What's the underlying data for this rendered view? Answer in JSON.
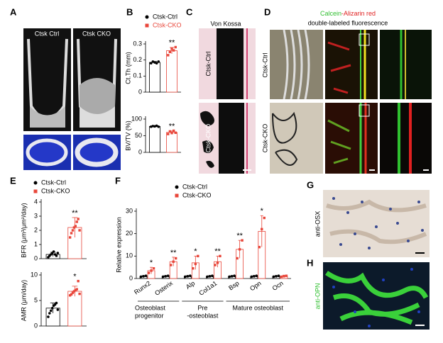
{
  "figure": {
    "panels": [
      "A",
      "B",
      "C",
      "D",
      "E",
      "F",
      "G",
      "H"
    ],
    "a_labels": [
      "Ctsk Ctrl",
      "Ctsk CKO"
    ],
    "c_title": "Von Kossa",
    "c_rows": [
      "Ctsk-Ctrl",
      "Ctsk-CKO"
    ],
    "d_title": [
      "Calcein",
      "-Alizarin red",
      "double-labeled fluorescence"
    ],
    "d_rows": [
      "Ctsk-Ctrl",
      "Ctsk-CKO"
    ],
    "g_label": "anti-OSX",
    "h_label": "anti-OPN"
  },
  "chart_data": [
    {
      "type": "bar",
      "ylabel": "Ct.Th (mm)",
      "ylim": [
        0,
        0.3
      ],
      "yticks": [
        0,
        0.1,
        0.2,
        0.3
      ],
      "series": [
        {
          "name": "Ctsk-Ctrl",
          "color": "#000000",
          "values": [
            0.185
          ],
          "errors": [
            0.006
          ],
          "points": [
            [
              0.18,
              0.19,
              0.185,
              0.18,
              0.19
            ]
          ]
        },
        {
          "name": "Ctsk-CKO",
          "color": "#e8463a",
          "values": [
            0.258
          ],
          "errors": [
            0.02
          ],
          "points": [
            [
              0.23,
              0.25,
              0.27,
              0.26,
              0.28
            ]
          ]
        }
      ],
      "annotations": [
        "**"
      ]
    },
    {
      "type": "bar",
      "ylabel": "BV/TV (%)",
      "ylim": [
        0,
        100
      ],
      "yticks": [
        0,
        50,
        100
      ],
      "series": [
        {
          "color": "#000000",
          "values": [
            78
          ],
          "errors": [
            1.5
          ],
          "points": [
            [
              77,
              79,
              78,
              80,
              77
            ]
          ]
        },
        {
          "color": "#e8463a",
          "values": [
            60
          ],
          "errors": [
            4
          ],
          "points": [
            [
              55,
              63,
              58,
              65,
              59
            ]
          ]
        }
      ],
      "annotations": [
        "**"
      ]
    },
    {
      "type": "bar",
      "ylabel": "BFR (μm³/μm²/day)",
      "ylim": [
        0,
        4
      ],
      "yticks": [
        0,
        1,
        2,
        3,
        4
      ],
      "series": [
        {
          "name": "Ctsk-Ctrl",
          "color": "#000000",
          "values": [
            0.3
          ],
          "errors": [
            0.15
          ],
          "points": [
            [
              0.1,
              0.2,
              0.3,
              0.4,
              0.5,
              0.3,
              0.2,
              0.4
            ]
          ]
        },
        {
          "name": "Ctsk-CKO",
          "color": "#e8463a",
          "values": [
            2.2
          ],
          "errors": [
            0.7
          ],
          "points": [
            [
              1.5,
              1.8,
              2.0,
              2.2,
              2.3,
              2.6,
              2.8,
              2.0
            ]
          ]
        }
      ],
      "annotations": [
        "**"
      ]
    },
    {
      "type": "bar",
      "ylabel": "AMR (μm/day)",
      "ylim": [
        0,
        10
      ],
      "yticks": [
        0,
        5,
        10
      ],
      "series": [
        {
          "color": "#000000",
          "values": [
            3.5
          ],
          "errors": [
            1
          ],
          "points": [
            [
              1.8,
              2.5,
              3,
              3.5,
              4,
              4.2,
              4.5,
              3.2
            ]
          ]
        },
        {
          "color": "#e8463a",
          "values": [
            6.8
          ],
          "errors": [
            1
          ],
          "points": [
            [
              6,
              6.2,
              6.5,
              6.8,
              7,
              7.2,
              8.8,
              6.3
            ]
          ]
        }
      ],
      "annotations": [
        "*"
      ]
    },
    {
      "type": "bar",
      "ylabel": "Relative expression",
      "ylim": [
        0,
        30
      ],
      "yticks": [
        0,
        10,
        20,
        30
      ],
      "categories": [
        "Runx2",
        "Osterix",
        "Alp",
        "Col1a1",
        "Bsp",
        "Opn",
        "Ocn"
      ],
      "series": [
        {
          "name": "Ctsk-Ctrl",
          "color": "#000000",
          "values": [
            1,
            1,
            1,
            1,
            1,
            1,
            1
          ],
          "errors": [
            0.3,
            0.3,
            0.3,
            0.3,
            0.3,
            0.3,
            0.3
          ],
          "points": [
            [
              0.8,
              1,
              1.2
            ],
            [
              0.8,
              1,
              1.2
            ],
            [
              0.8,
              1,
              1.2
            ],
            [
              0.8,
              1,
              1.2
            ],
            [
              0.8,
              1,
              1.2
            ],
            [
              0.8,
              1,
              1.2
            ],
            [
              0.8,
              1,
              1.2
            ]
          ]
        },
        {
          "name": "Ctsk-CKO",
          "color": "#e8463a",
          "values": [
            3.5,
            7.5,
            7,
            7.5,
            13,
            21,
            1
          ],
          "errors": [
            1.5,
            2,
            3,
            2.5,
            4,
            7,
            0.5
          ],
          "points": [
            [
              2.5,
              3.5,
              4.5
            ],
            [
              6,
              7.5,
              9
            ],
            [
              4.5,
              6.5,
              10
            ],
            [
              6,
              7,
              10
            ],
            [
              9,
              13,
              17
            ],
            [
              14,
              22,
              27
            ],
            [
              0.8,
              1,
              1.2
            ]
          ]
        }
      ],
      "annotations": [
        "*",
        "**",
        "*",
        "**",
        "**",
        "*",
        null
      ],
      "groups": [
        [
          "Osteoblast",
          "progenitor"
        ],
        [
          "Pre",
          "-osteoblast"
        ],
        [
          "Mature osteoblast"
        ]
      ]
    }
  ]
}
